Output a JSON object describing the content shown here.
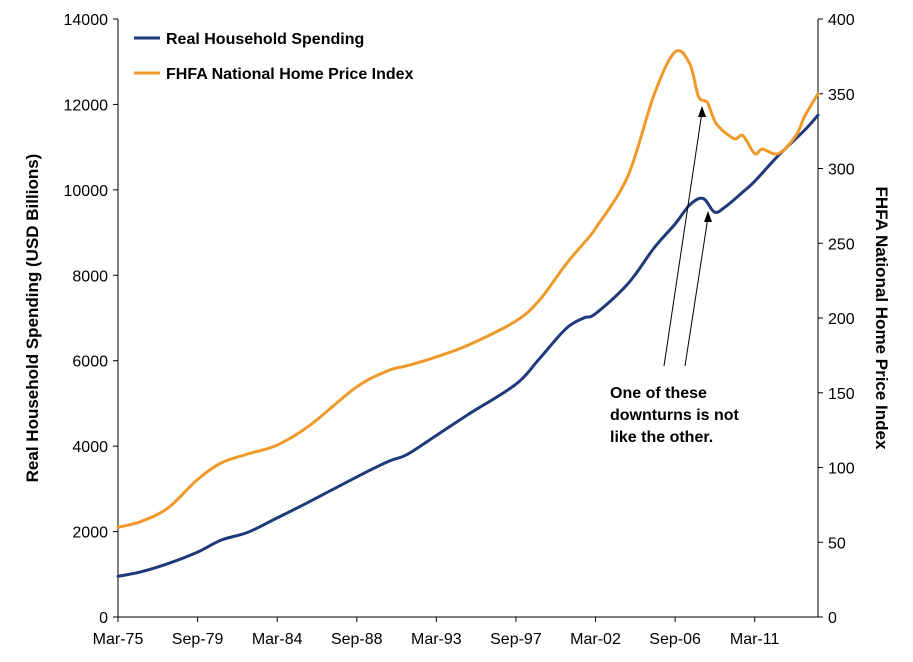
{
  "chart_data": {
    "type": "line",
    "title": "",
    "xlabel": "",
    "ylabel": "Real Household Spending (USD Billions)",
    "y2label": "FHFA National Home Price Index",
    "x_range": [
      1975.17,
      2014.75
    ],
    "ylim": [
      0,
      14000
    ],
    "y2lim": [
      0,
      400
    ],
    "y_ticks": [
      "0",
      "2000",
      "4000",
      "6000",
      "8000",
      "10000",
      "12000",
      "14000"
    ],
    "y2_ticks": [
      "0",
      "50",
      "100",
      "150",
      "200",
      "250",
      "300",
      "350",
      "400"
    ],
    "x_ticks": [
      {
        "label": "Mar-75",
        "x": 1975.17
      },
      {
        "label": "Sep-79",
        "x": 1979.67
      },
      {
        "label": "Mar-84",
        "x": 1984.17
      },
      {
        "label": "Sep-88",
        "x": 1988.67
      },
      {
        "label": "Mar-93",
        "x": 1993.17
      },
      {
        "label": "Sep-97",
        "x": 1997.67
      },
      {
        "label": "Mar-02",
        "x": 2002.17
      },
      {
        "label": "Sep-06",
        "x": 2006.67
      },
      {
        "label": "Mar-11",
        "x": 2011.17
      }
    ],
    "grid": false,
    "legend": "top-left",
    "series": [
      {
        "name": "Real Household Spending",
        "axis": "left",
        "color": "#1f3a7a",
        "points": [
          [
            1975.17,
            950
          ],
          [
            1976.5,
            1060
          ],
          [
            1978.0,
            1250
          ],
          [
            1979.67,
            1520
          ],
          [
            1981.0,
            1800
          ],
          [
            1982.5,
            1980
          ],
          [
            1984.17,
            2320
          ],
          [
            1986.0,
            2700
          ],
          [
            1988.67,
            3280
          ],
          [
            1990.5,
            3650
          ],
          [
            1991.5,
            3800
          ],
          [
            1993.17,
            4250
          ],
          [
            1995.0,
            4750
          ],
          [
            1997.67,
            5450
          ],
          [
            1999.0,
            6050
          ],
          [
            2000.5,
            6750
          ],
          [
            2001.5,
            7000
          ],
          [
            2002.17,
            7100
          ],
          [
            2004.0,
            7800
          ],
          [
            2005.5,
            8650
          ],
          [
            2006.67,
            9200
          ],
          [
            2007.5,
            9650
          ],
          [
            2008.25,
            9800
          ],
          [
            2008.9,
            9480
          ],
          [
            2009.5,
            9600
          ],
          [
            2010.5,
            9950
          ],
          [
            2011.17,
            10200
          ],
          [
            2012.5,
            10800
          ],
          [
            2014.0,
            11400
          ],
          [
            2014.75,
            11750
          ]
        ]
      },
      {
        "name": "FHFA National Home Price Index",
        "axis": "right",
        "color": "#f0992b",
        "points": [
          [
            1975.17,
            60
          ],
          [
            1976.5,
            64
          ],
          [
            1978.0,
            73
          ],
          [
            1979.67,
            92
          ],
          [
            1981.0,
            103
          ],
          [
            1982.5,
            109
          ],
          [
            1984.17,
            115
          ],
          [
            1986.0,
            128
          ],
          [
            1988.67,
            154
          ],
          [
            1990.5,
            165
          ],
          [
            1991.5,
            168
          ],
          [
            1993.17,
            174
          ],
          [
            1995.0,
            182
          ],
          [
            1997.67,
            198
          ],
          [
            1999.0,
            212
          ],
          [
            2000.5,
            236
          ],
          [
            2001.5,
            250
          ],
          [
            2002.17,
            260
          ],
          [
            2004.0,
            295
          ],
          [
            2005.5,
            350
          ],
          [
            2006.67,
            378
          ],
          [
            2007.5,
            370
          ],
          [
            2008.0,
            348
          ],
          [
            2008.5,
            344
          ],
          [
            2009.0,
            330
          ],
          [
            2010.0,
            320
          ],
          [
            2010.5,
            322
          ],
          [
            2011.17,
            310
          ],
          [
            2011.6,
            313
          ],
          [
            2012.5,
            310
          ],
          [
            2013.5,
            322
          ],
          [
            2014.0,
            335
          ],
          [
            2014.75,
            350
          ]
        ]
      }
    ],
    "annotation": {
      "lines": [
        "One of these",
        "downturns is not",
        "like the other."
      ]
    }
  }
}
